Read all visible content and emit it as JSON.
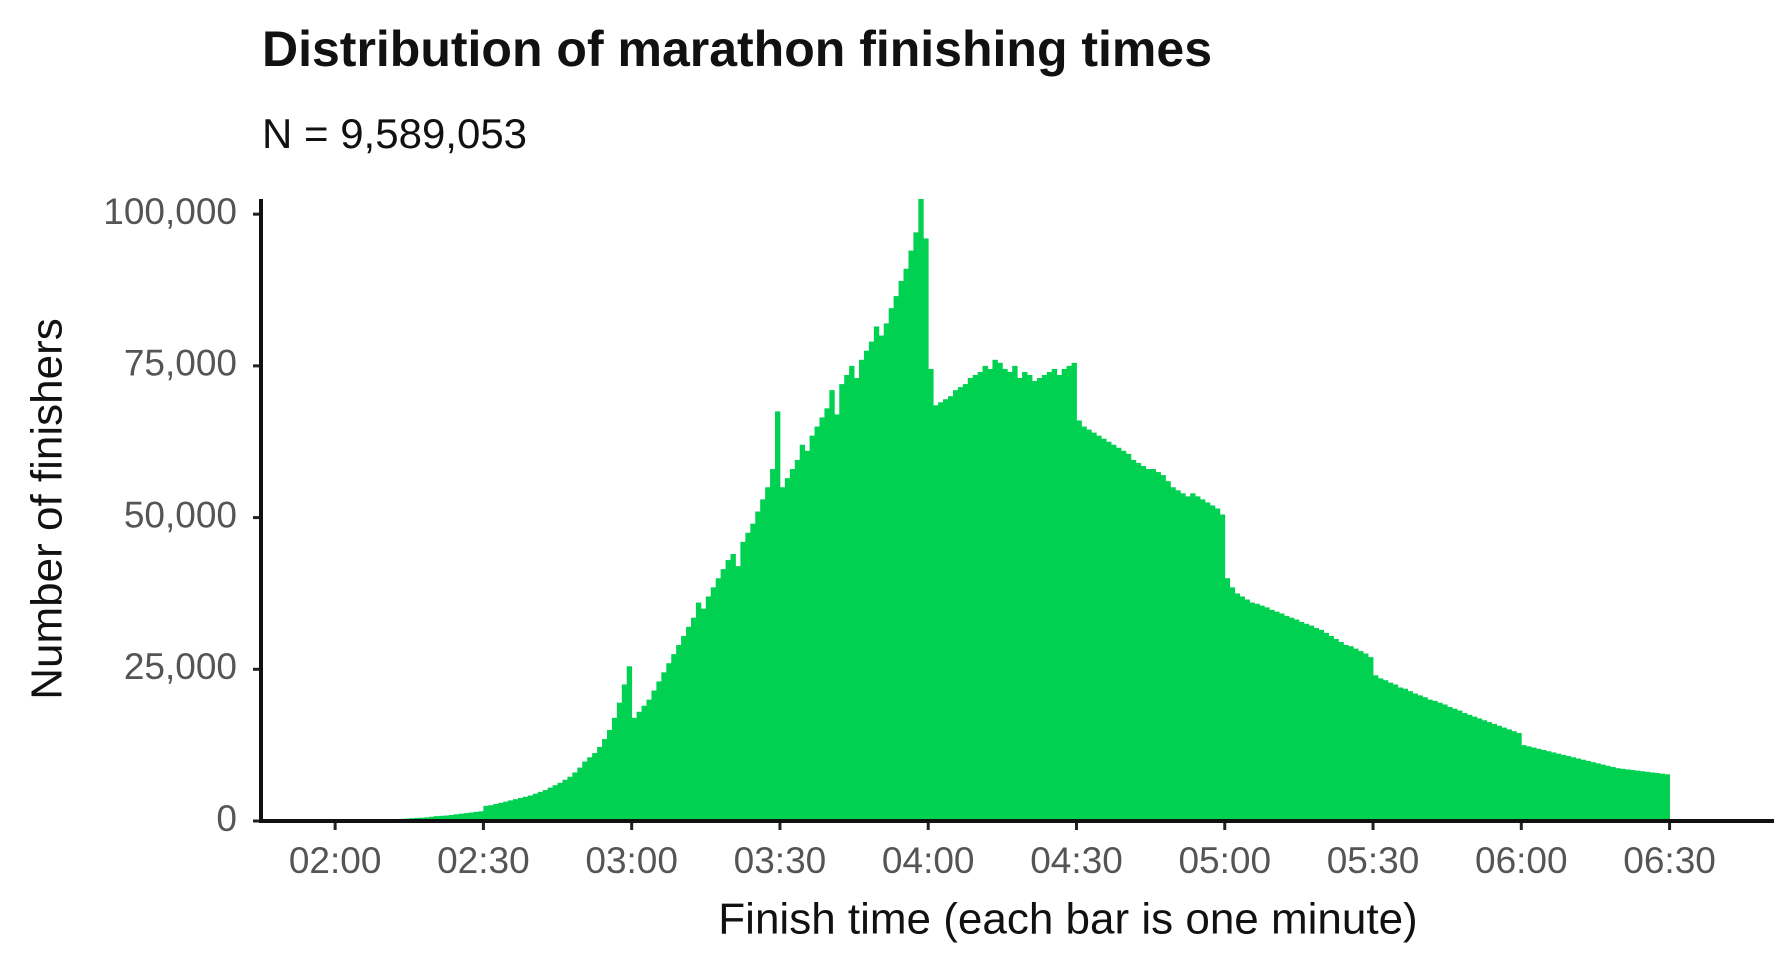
{
  "chart_data": {
    "type": "histogram",
    "title": "Distribution of marathon finishing times",
    "subtitle": "N = 9,589,053",
    "x_label": "Finish time (each bar is one minute)",
    "y_label": "Number of finishers",
    "color": "#00d150",
    "xlim": [
      105,
      400
    ],
    "ylim": [
      0,
      102500
    ],
    "xticks": [
      {
        "value": 120,
        "label": "02:00"
      },
      {
        "value": 150,
        "label": "02:30"
      },
      {
        "value": 180,
        "label": "03:00"
      },
      {
        "value": 210,
        "label": "03:30"
      },
      {
        "value": 240,
        "label": "04:00"
      },
      {
        "value": 270,
        "label": "04:30"
      },
      {
        "value": 300,
        "label": "05:00"
      },
      {
        "value": 330,
        "label": "05:30"
      },
      {
        "value": 360,
        "label": "06:00"
      },
      {
        "value": 390,
        "label": "06:30"
      }
    ],
    "yticks": [
      0,
      {
        "value": 25000,
        "label": "25,000"
      },
      {
        "value": 50000,
        "label": "50,000"
      },
      {
        "value": 75000,
        "label": "75,000"
      },
      {
        "value": 100000,
        "label": "100,000"
      }
    ],
    "bins": [
      128,
      129,
      130,
      131,
      132,
      133,
      134,
      135,
      136,
      137,
      138,
      139,
      140,
      141,
      142,
      143,
      144,
      145,
      146,
      147,
      148,
      149,
      150,
      151,
      152,
      153,
      154,
      155,
      156,
      157,
      158,
      159,
      160,
      161,
      162,
      163,
      164,
      165,
      166,
      167,
      168,
      169,
      170,
      171,
      172,
      173,
      174,
      175,
      176,
      177,
      178,
      179,
      180,
      181,
      182,
      183,
      184,
      185,
      186,
      187,
      188,
      189,
      190,
      191,
      192,
      193,
      194,
      195,
      196,
      197,
      198,
      199,
      200,
      201,
      202,
      203,
      204,
      205,
      206,
      207,
      208,
      209,
      210,
      211,
      212,
      213,
      214,
      215,
      216,
      217,
      218,
      219,
      220,
      221,
      222,
      223,
      224,
      225,
      226,
      227,
      228,
      229,
      230,
      231,
      232,
      233,
      234,
      235,
      236,
      237,
      238,
      239,
      240,
      241,
      242,
      243,
      244,
      245,
      246,
      247,
      248,
      249,
      250,
      251,
      252,
      253,
      254,
      255,
      256,
      257,
      258,
      259,
      260,
      261,
      262,
      263,
      264,
      265,
      266,
      267,
      268,
      269,
      270,
      271,
      272,
      273,
      274,
      275,
      276,
      277,
      278,
      279,
      280,
      281,
      282,
      283,
      284,
      285,
      286,
      287,
      288,
      289,
      290,
      291,
      292,
      293,
      294,
      295,
      296,
      297,
      298,
      299,
      300,
      301,
      302,
      303,
      304,
      305,
      306,
      307,
      308,
      309,
      310,
      311,
      312,
      313,
      314,
      315,
      316,
      317,
      318,
      319,
      320,
      321,
      322,
      323,
      324,
      325,
      326,
      327,
      328,
      329,
      330,
      331,
      332,
      333,
      334,
      335,
      336,
      337,
      338,
      339,
      340,
      341,
      342,
      343,
      344,
      345,
      346,
      347,
      348,
      349,
      350,
      351,
      352,
      353,
      354,
      355,
      356,
      357,
      358,
      359,
      360,
      361,
      362,
      363,
      364,
      365,
      366,
      367,
      368,
      369,
      370,
      371,
      372,
      373,
      374,
      375,
      376,
      377,
      378,
      379,
      380,
      381,
      382,
      383,
      384,
      385,
      386,
      387,
      388,
      389,
      390
    ],
    "values": [
      100,
      150,
      200,
      250,
      300,
      350,
      400,
      450,
      500,
      550,
      600,
      700,
      800,
      850,
      900,
      1000,
      1100,
      1200,
      1300,
      1400,
      1500,
      1600,
      2500,
      2600,
      2800,
      3000,
      3200,
      3400,
      3600,
      3800,
      4000,
      4200,
      4500,
      4800,
      5100,
      5500,
      5900,
      6300,
      6800,
      7300,
      8000,
      8800,
      9800,
      10500,
      11200,
      12200,
      13500,
      15000,
      17000,
      19500,
      22500,
      25500,
      17000,
      18000,
      19000,
      20000,
      21500,
      23000,
      24500,
      26000,
      27500,
      29000,
      30500,
      32000,
      33500,
      36000,
      35000,
      37000,
      38500,
      40000,
      41500,
      43000,
      44000,
      42000,
      46000,
      47500,
      49000,
      51000,
      53000,
      55000,
      58000,
      67500,
      55000,
      56500,
      58000,
      59500,
      62000,
      61000,
      63500,
      65000,
      66500,
      68000,
      71000,
      67000,
      72000,
      73500,
      75000,
      73000,
      76000,
      77500,
      79000,
      81500,
      80000,
      82000,
      84500,
      86500,
      89000,
      91000,
      94000,
      97000,
      102500,
      96000,
      74500,
      68500,
      69000,
      69500,
      70000,
      71000,
      71500,
      72000,
      73000,
      73500,
      74000,
      75000,
      74500,
      76000,
      75500,
      74500,
      74000,
      75000,
      73000,
      74000,
      73500,
      72500,
      73000,
      73500,
      74000,
      74500,
      73500,
      74500,
      75000,
      75500,
      66000,
      65000,
      64500,
      64000,
      63500,
      63000,
      62500,
      62000,
      61500,
      61000,
      60500,
      59500,
      59000,
      58500,
      58000,
      58000,
      57500,
      57000,
      56000,
      55000,
      54500,
      54000,
      53500,
      54000,
      53500,
      53000,
      52500,
      52000,
      51500,
      50500,
      40000,
      38500,
      37500,
      37000,
      36500,
      36000,
      35800,
      35500,
      35200,
      34800,
      34500,
      34200,
      33800,
      33500,
      33200,
      32800,
      32500,
      32200,
      31800,
      31500,
      31000,
      30500,
      30000,
      29500,
      29000,
      28800,
      28400,
      28000,
      27600,
      27000,
      24000,
      23500,
      23200,
      22800,
      22500,
      22000,
      21800,
      21400,
      21000,
      20700,
      20400,
      20000,
      19800,
      19500,
      19200,
      18800,
      18500,
      18200,
      17800,
      17500,
      17200,
      16900,
      16600,
      16300,
      16000,
      15700,
      15400,
      15100,
      14800,
      14500,
      12500,
      12300,
      12100,
      11900,
      11700,
      11500,
      11300,
      11100,
      10900,
      10700,
      10500,
      10300,
      10100,
      9900,
      9700,
      9500,
      9300,
      9100,
      8900,
      8700,
      8600,
      8500,
      8400,
      8300,
      8200,
      8100,
      8000,
      7900,
      7800,
      7700
    ]
  }
}
